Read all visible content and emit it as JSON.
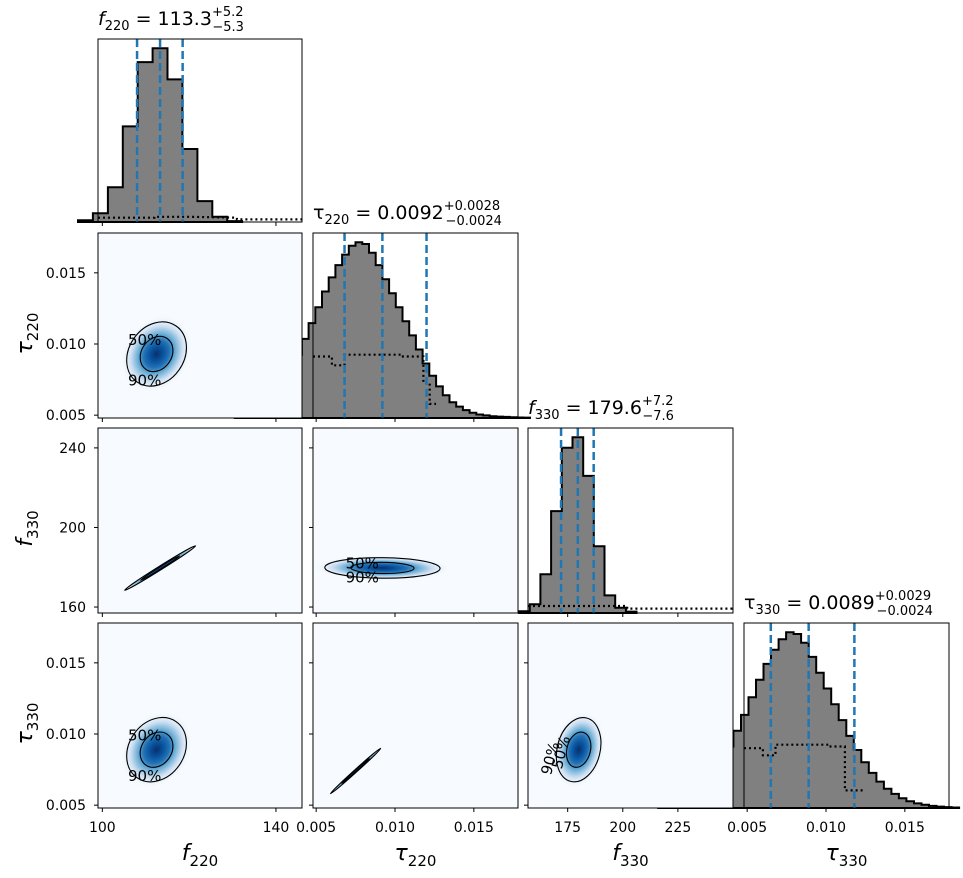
{
  "chart_data": {
    "type": "corner",
    "parameters": [
      {
        "symbol": "f",
        "sub": "220",
        "italic": true,
        "median": "113.3",
        "plus": "+5.2",
        "minus": "−5.3",
        "range": [
          99,
          146
        ],
        "ticks": [
          "100",
          "140"
        ],
        "tick_values": [
          100,
          140
        ],
        "quantiles": [
          108,
          113.3,
          118.5
        ]
      },
      {
        "symbol": "τ",
        "sub": "220",
        "italic": false,
        "median": "0.0092",
        "plus": "+0.0028",
        "minus": "−0.0024",
        "range": [
          0.0048,
          0.0178
        ],
        "ticks": [
          "0.005",
          "0.010",
          "0.015"
        ],
        "tick_values": [
          0.005,
          0.01,
          0.015
        ],
        "quantiles": [
          0.0068,
          0.0092,
          0.012
        ]
      },
      {
        "symbol": "f",
        "sub": "330",
        "italic": true,
        "median": "179.6",
        "plus": "+7.2",
        "minus": "−7.6",
        "range": [
          157,
          250
        ],
        "ticks": [
          "175",
          "200",
          "225"
        ],
        "tick_values": [
          175,
          200,
          225
        ],
        "y_ticks": [
          "160",
          "200",
          "240"
        ],
        "y_tick_values": [
          160,
          200,
          240
        ],
        "quantiles": [
          172,
          179.6,
          186.8
        ]
      },
      {
        "symbol": "τ",
        "sub": "330",
        "italic": false,
        "median": "0.0089",
        "plus": "+0.0029",
        "minus": "−0.0024",
        "range": [
          0.0048,
          0.0178
        ],
        "ticks": [
          "0.005",
          "0.010",
          "0.015"
        ],
        "tick_values": [
          0.005,
          0.01,
          0.015
        ],
        "quantiles": [
          0.0065,
          0.0089,
          0.0118
        ]
      }
    ],
    "contour_labels": [
      "50%",
      "90%"
    ],
    "quantile_line_color": "#1f77b4",
    "histogram_fill": "#808080",
    "density_colormap": "Blues",
    "histograms": [
      {
        "counts": [
          0.01,
          0.05,
          0.2,
          0.55,
          0.92,
          1.0,
          0.82,
          0.42,
          0.12,
          0.03,
          0.005
        ]
      },
      {
        "counts": [
          0.01,
          0.02,
          0.03,
          0.05,
          0.08,
          0.11,
          0.15,
          0.2,
          0.27,
          0.36,
          0.45,
          0.54,
          0.63,
          0.72,
          0.8,
          0.87,
          0.93,
          0.98,
          1.0,
          0.99,
          0.94,
          0.87,
          0.79,
          0.71,
          0.63,
          0.55,
          0.47,
          0.39,
          0.31,
          0.24,
          0.18,
          0.13,
          0.09,
          0.065,
          0.045,
          0.03,
          0.02,
          0.015,
          0.01,
          0.008,
          0.006,
          0.004,
          0.003,
          0.002
        ]
      },
      {
        "counts": [
          0.01,
          0.05,
          0.22,
          0.58,
          0.94,
          1.0,
          0.78,
          0.38,
          0.1,
          0.03,
          0.008
        ]
      },
      {
        "counts": [
          0.01,
          0.02,
          0.03,
          0.05,
          0.08,
          0.11,
          0.15,
          0.2,
          0.27,
          0.35,
          0.44,
          0.53,
          0.63,
          0.73,
          0.82,
          0.9,
          0.96,
          1.0,
          0.99,
          0.94,
          0.86,
          0.77,
          0.68,
          0.59,
          0.5,
          0.41,
          0.33,
          0.26,
          0.2,
          0.15,
          0.11,
          0.08,
          0.055,
          0.038,
          0.026,
          0.018,
          0.012,
          0.008,
          0.005,
          0.003
        ]
      }
    ],
    "priors": [
      {
        "x": [
          99,
          112,
          112,
          120,
          120,
          131,
          131,
          146
        ],
        "y": [
          0.025,
          0.025,
          0.03,
          0.03,
          0.03,
          0.025,
          0.015,
          0.015
        ]
      },
      {
        "x": [
          0.0048,
          0.006,
          0.006,
          0.0068,
          0.0068,
          0.0105,
          0.0105,
          0.0118,
          0.0118,
          0.0122,
          0.0122,
          0.0126
        ],
        "y": [
          0.35,
          0.35,
          0.3,
          0.3,
          0.36,
          0.36,
          0.35,
          0.35,
          0.2,
          0.2,
          0.08,
          0.08
        ]
      },
      {
        "x": [
          157,
          175,
          175,
          202,
          202,
          250
        ],
        "y": [
          0.04,
          0.04,
          0.04,
          0.04,
          0.025,
          0.025
        ]
      },
      {
        "x": [
          0.0048,
          0.006,
          0.006,
          0.0068,
          0.0068,
          0.0102,
          0.0102,
          0.0112,
          0.0112,
          0.0125
        ],
        "y": [
          0.34,
          0.34,
          0.3,
          0.3,
          0.36,
          0.36,
          0.35,
          0.35,
          0.1,
          0.1
        ]
      }
    ],
    "panels_2d": [
      {
        "row": 1,
        "col": 0,
        "center": [
          112.5,
          0.0093
        ],
        "sd": [
          3.2,
          0.00105
        ],
        "rho": 0.2,
        "labels": true
      },
      {
        "row": 2,
        "col": 0,
        "center": [
          113.3,
          179.6
        ],
        "sd": [
          3.8,
          5.2
        ],
        "rho": 0.995,
        "labels": false
      },
      {
        "row": 2,
        "col": 1,
        "center": [
          0.0092,
          179.6
        ],
        "sd": [
          0.0017,
          2.4
        ],
        "rho": -0.05,
        "labels": true
      },
      {
        "row": 3,
        "col": 0,
        "center": [
          112.5,
          0.0089
        ],
        "sd": [
          3.2,
          0.00105
        ],
        "rho": 0.2,
        "labels": true
      },
      {
        "row": 3,
        "col": 1,
        "center": [
          0.0075,
          0.0074
        ],
        "sd": [
          0.00074,
          0.00074
        ],
        "rho": 0.998,
        "labels": false
      },
      {
        "row": 3,
        "col": 2,
        "center": [
          180.0,
          0.0089
        ],
        "sd": [
          4.7,
          0.00105
        ],
        "rho": 0.2,
        "labels": true
      }
    ]
  }
}
